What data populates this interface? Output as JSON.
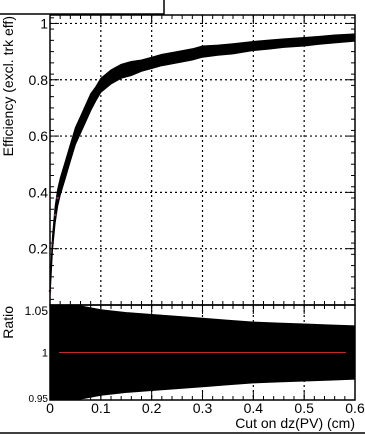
{
  "chart_data": [
    {
      "type": "line",
      "panel": "top",
      "title": "",
      "xlabel": "",
      "ylabel": "Efficiency (excl. trk eff)",
      "xlim": [
        0,
        0.6
      ],
      "ylim": [
        0,
        1.03
      ],
      "grid": true,
      "x_ticks": [
        0,
        0.1,
        0.2,
        0.3,
        0.4,
        0.5,
        0.6
      ],
      "y_ticks": [
        0.2,
        0.4,
        0.6,
        0.8,
        1
      ],
      "y_tick_labels": [
        "0.2",
        "0.4",
        "0.6",
        "0.8",
        "1"
      ],
      "series": [
        {
          "color": "#000000",
          "marker_color": "#7a2a6a",
          "x": [
            0,
            0.005,
            0.01,
            0.015,
            0.02,
            0.03,
            0.04,
            0.05,
            0.06,
            0.07,
            0.08,
            0.09,
            0.1,
            0.12,
            0.14,
            0.16,
            0.18,
            0.2,
            0.22,
            0.25,
            0.28,
            0.3,
            0.33,
            0.36,
            0.4,
            0.43,
            0.46,
            0.5,
            0.53,
            0.56,
            0.6
          ],
          "y": [
            0.05,
            0.22,
            0.32,
            0.38,
            0.42,
            0.48,
            0.54,
            0.6,
            0.64,
            0.68,
            0.72,
            0.75,
            0.78,
            0.81,
            0.83,
            0.84,
            0.85,
            0.86,
            0.87,
            0.88,
            0.89,
            0.9,
            0.905,
            0.91,
            0.92,
            0.925,
            0.93,
            0.935,
            0.94,
            0.945,
            0.95
          ],
          "band_halfwidth": [
            0.02,
            0.025,
            0.03,
            0.03,
            0.03,
            0.03,
            0.03,
            0.03,
            0.03,
            0.03,
            0.03,
            0.025,
            0.025,
            0.025,
            0.025,
            0.025,
            0.02,
            0.02,
            0.02,
            0.02,
            0.02,
            0.02,
            0.018,
            0.018,
            0.016,
            0.016,
            0.015,
            0.015,
            0.014,
            0.014,
            0.013
          ]
        }
      ]
    },
    {
      "type": "line",
      "panel": "bottom",
      "title": "",
      "xlabel": "Cut on dz(PV) (cm)",
      "ylabel": "Ratio",
      "xlim": [
        0,
        0.6
      ],
      "ylim": [
        0.95,
        1.05
      ],
      "grid": true,
      "x_ticks": [
        0,
        0.1,
        0.2,
        0.3,
        0.4,
        0.5,
        0.6
      ],
      "x_tick_labels": [
        "0",
        "0.1",
        "0.2",
        "0.3",
        "0.4",
        "0.5",
        "0.6"
      ],
      "y_ticks": [
        0.95,
        1,
        1.05
      ],
      "y_tick_labels": [
        "0.95",
        "1",
        "1.05"
      ],
      "reference_line": 1,
      "reference_color": "#c0282a",
      "series": [
        {
          "color": "#000000",
          "x": [
            0,
            0.05,
            0.1,
            0.15,
            0.2,
            0.25,
            0.3,
            0.35,
            0.4,
            0.45,
            0.5,
            0.55,
            0.6
          ],
          "y": [
            1,
            1,
            1,
            1,
            1,
            1,
            1,
            1,
            1,
            1,
            1,
            1,
            1
          ],
          "band_halfwidth": [
            0.05,
            0.05,
            0.045,
            0.042,
            0.04,
            0.038,
            0.036,
            0.034,
            0.032,
            0.031,
            0.03,
            0.029,
            0.028
          ]
        }
      ]
    }
  ]
}
